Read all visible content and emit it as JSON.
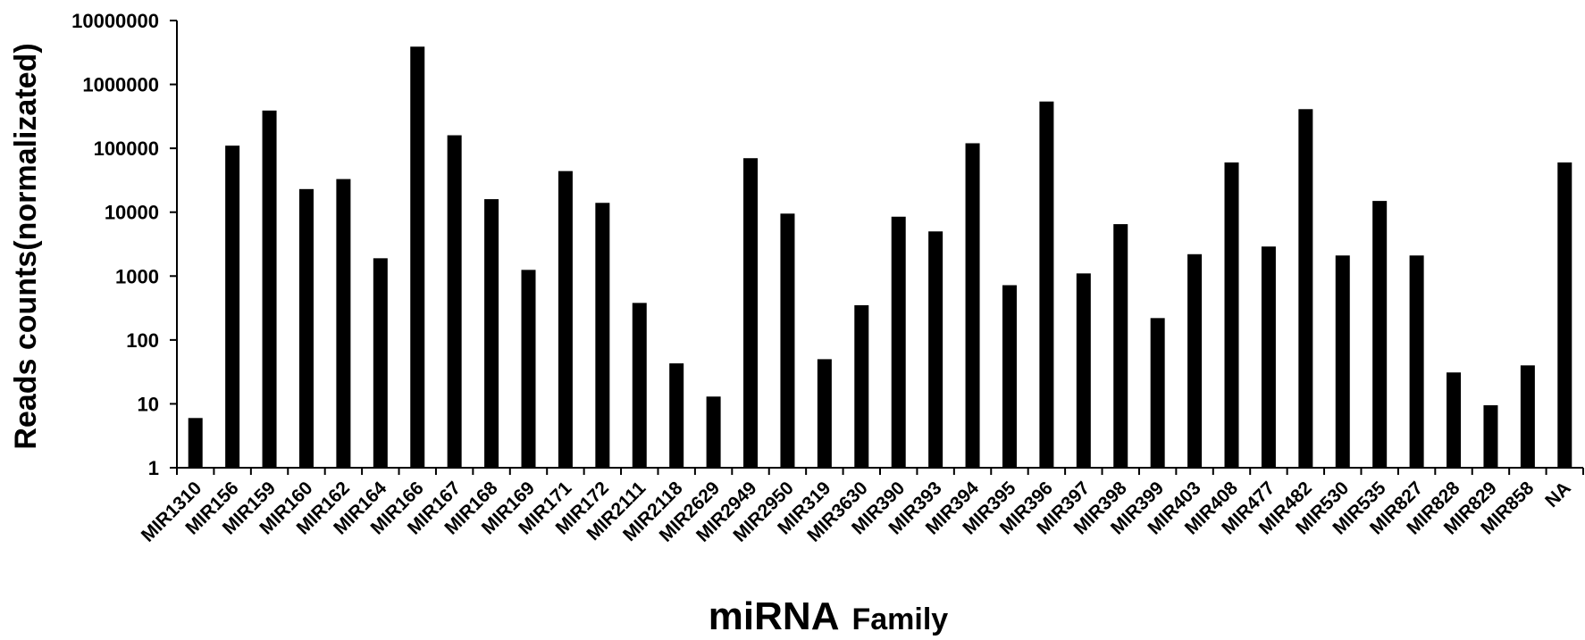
{
  "chart_data": {
    "type": "bar",
    "scale": "log",
    "ylim": [
      1,
      10000000
    ],
    "yticks": [
      "1",
      "10",
      "100",
      "1000",
      "10000",
      "100000",
      "1000000",
      "10000000"
    ],
    "ylabel": "Reads counts(normalizated)",
    "xlabel_main": "miRNA",
    "xlabel_sub": "Family",
    "bar_color": "#000000",
    "grid": false,
    "categories": [
      "MIR1310",
      "MIR156",
      "MIR159",
      "MIR160",
      "MIR162",
      "MIR164",
      "MIR166",
      "MIR167",
      "MIR168",
      "MIR169",
      "MIR171",
      "MIR172",
      "MIR2111",
      "MIR2118",
      "MIR2629",
      "MIR2949",
      "MIR2950",
      "MIR319",
      "MIR3630",
      "MIR390",
      "MIR393",
      "MIR394",
      "MIR395",
      "MIR396",
      "MIR397",
      "MIR398",
      "MIR399",
      "MIR403",
      "MIR408",
      "MIR477",
      "MIR482",
      "MIR530",
      "MIR535",
      "MIR827",
      "MIR828",
      "MIR829",
      "MIR858",
      "NA"
    ],
    "values": [
      6,
      110000,
      390000,
      23000,
      33000,
      1900,
      3900000,
      160000,
      16000,
      1250,
      44000,
      14000,
      380,
      43,
      13,
      70000,
      9500,
      50,
      350,
      8500,
      5000,
      120000,
      720,
      540000,
      1100,
      6500,
      220,
      2200,
      60000,
      2900,
      410000,
      2100,
      15000,
      2100,
      31,
      9.5,
      40,
      60000
    ]
  }
}
